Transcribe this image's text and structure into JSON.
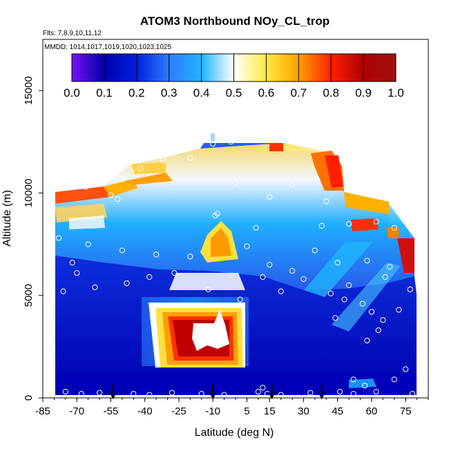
{
  "chart_data": {
    "type": "heatmap",
    "title": "ATOM3 Northbound NOy_CL_trop",
    "flights_label": "Flts: 7,8,9,10,11,12",
    "dates_label": "MMDD: 1014,1017,1019,1020,1023,1025",
    "xlabel": "Latitude (deg N)",
    "ylabel": "Altitude (m)",
    "xlim": [
      -85,
      85
    ],
    "ylim": [
      0,
      17500
    ],
    "x_ticks": [
      -85,
      -70,
      -55,
      -40,
      -25,
      -10,
      5,
      15,
      30,
      45,
      60,
      75
    ],
    "y_ticks": [
      0,
      5000,
      10000,
      15000
    ],
    "colorbar": {
      "range": [
        0,
        1
      ],
      "ticks": [
        "0.0",
        "0.1",
        "0.2",
        "0.3",
        "0.4",
        "0.5",
        "0.6",
        "0.7",
        "0.8",
        "0.9",
        "1.0"
      ],
      "colors": [
        "#7a10f0",
        "#0000b0",
        "#0020e0",
        "#2d7bff",
        "#1fb5ff",
        "#ffffff",
        "#ffeb40",
        "#ffa000",
        "#ff2000",
        "#b00000",
        "#a01010"
      ]
    },
    "takeoff_latitudes": [
      -54,
      -10,
      16,
      38
    ],
    "observations": [
      {
        "lat": -75,
        "alt": 300
      },
      {
        "lat": -68,
        "alt": 200
      },
      {
        "lat": -60,
        "alt": 250
      },
      {
        "lat": -45,
        "alt": 200
      },
      {
        "lat": -38,
        "alt": 150
      },
      {
        "lat": -28,
        "alt": 250
      },
      {
        "lat": -15,
        "alt": 200
      },
      {
        "lat": -5,
        "alt": 150
      },
      {
        "lat": 10,
        "alt": 300
      },
      {
        "lat": 12,
        "alt": 500
      },
      {
        "lat": 14,
        "alt": 200
      },
      {
        "lat": 20,
        "alt": 150
      },
      {
        "lat": 33,
        "alt": 250
      },
      {
        "lat": 46,
        "alt": 300
      },
      {
        "lat": 52,
        "alt": 200
      },
      {
        "lat": 57,
        "alt": 600
      },
      {
        "lat": 62,
        "alt": 300
      },
      {
        "lat": 70,
        "alt": 900
      },
      {
        "lat": 78,
        "alt": 200
      },
      {
        "lat": 8,
        "alt": 12900
      },
      {
        "lat": 4,
        "alt": 12600
      },
      {
        "lat": -2,
        "alt": 12500
      },
      {
        "lat": -10,
        "alt": 12400
      },
      {
        "lat": -20,
        "alt": 11700
      },
      {
        "lat": -32,
        "alt": 11600
      },
      {
        "lat": -42,
        "alt": 11200
      },
      {
        "lat": -50,
        "alt": 10700
      },
      {
        "lat": -60,
        "alt": 10500
      },
      {
        "lat": -66,
        "alt": 10300
      },
      {
        "lat": -55,
        "alt": 9900
      },
      {
        "lat": -52,
        "alt": 9700
      },
      {
        "lat": 0,
        "alt": 10500
      },
      {
        "lat": 15,
        "alt": 9800
      },
      {
        "lat": 25,
        "alt": 10400
      },
      {
        "lat": 40,
        "alt": 9600
      },
      {
        "lat": 55,
        "alt": 10100
      },
      {
        "lat": 62,
        "alt": 8600
      },
      {
        "lat": 70,
        "alt": 8300
      },
      {
        "lat": 50,
        "alt": 8500
      },
      {
        "lat": -78,
        "alt": 7800
      },
      {
        "lat": -65,
        "alt": 7500
      },
      {
        "lat": -50,
        "alt": 7200
      },
      {
        "lat": -35,
        "alt": 7000
      },
      {
        "lat": -20,
        "alt": 6900
      },
      {
        "lat": -9,
        "alt": 8900
      },
      {
        "lat": 5,
        "alt": 7400
      },
      {
        "lat": 15,
        "alt": 6500
      },
      {
        "lat": 25,
        "alt": 6200
      },
      {
        "lat": 35,
        "alt": 7200
      },
      {
        "lat": 45,
        "alt": 6600
      },
      {
        "lat": 58,
        "alt": 6700
      },
      {
        "lat": 68,
        "alt": 6400
      },
      {
        "lat": -72,
        "alt": 6600
      },
      {
        "lat": -70,
        "alt": 6100
      },
      {
        "lat": -62,
        "alt": 5400
      },
      {
        "lat": -48,
        "alt": 5600
      },
      {
        "lat": -38,
        "alt": 5900
      },
      {
        "lat": -27,
        "alt": 6100
      },
      {
        "lat": -12,
        "alt": 5300
      },
      {
        "lat": 2,
        "alt": 4800
      },
      {
        "lat": 12,
        "alt": 5900
      },
      {
        "lat": 20,
        "alt": 5200
      },
      {
        "lat": 30,
        "alt": 5800
      },
      {
        "lat": 42,
        "alt": 5100
      },
      {
        "lat": 50,
        "alt": 5500
      },
      {
        "lat": 56,
        "alt": 4600
      },
      {
        "lat": 60,
        "alt": 4200
      },
      {
        "lat": 65,
        "alt": 3800
      },
      {
        "lat": 72,
        "alt": 4300
      },
      {
        "lat": 77,
        "alt": 5300
      },
      {
        "lat": -76,
        "alt": 5200
      },
      {
        "lat": 48,
        "alt": 4800
      },
      {
        "lat": 63,
        "alt": 3300
      },
      {
        "lat": 75,
        "alt": 1400
      },
      {
        "lat": 52,
        "alt": 900
      },
      {
        "lat": -8,
        "alt": 9000
      },
      {
        "lat": 9,
        "alt": 8300
      },
      {
        "lat": 38,
        "alt": 8400
      },
      {
        "lat": 66,
        "alt": 5900
      },
      {
        "lat": 44,
        "alt": 3900
      },
      {
        "lat": 58,
        "alt": 2800
      }
    ]
  }
}
